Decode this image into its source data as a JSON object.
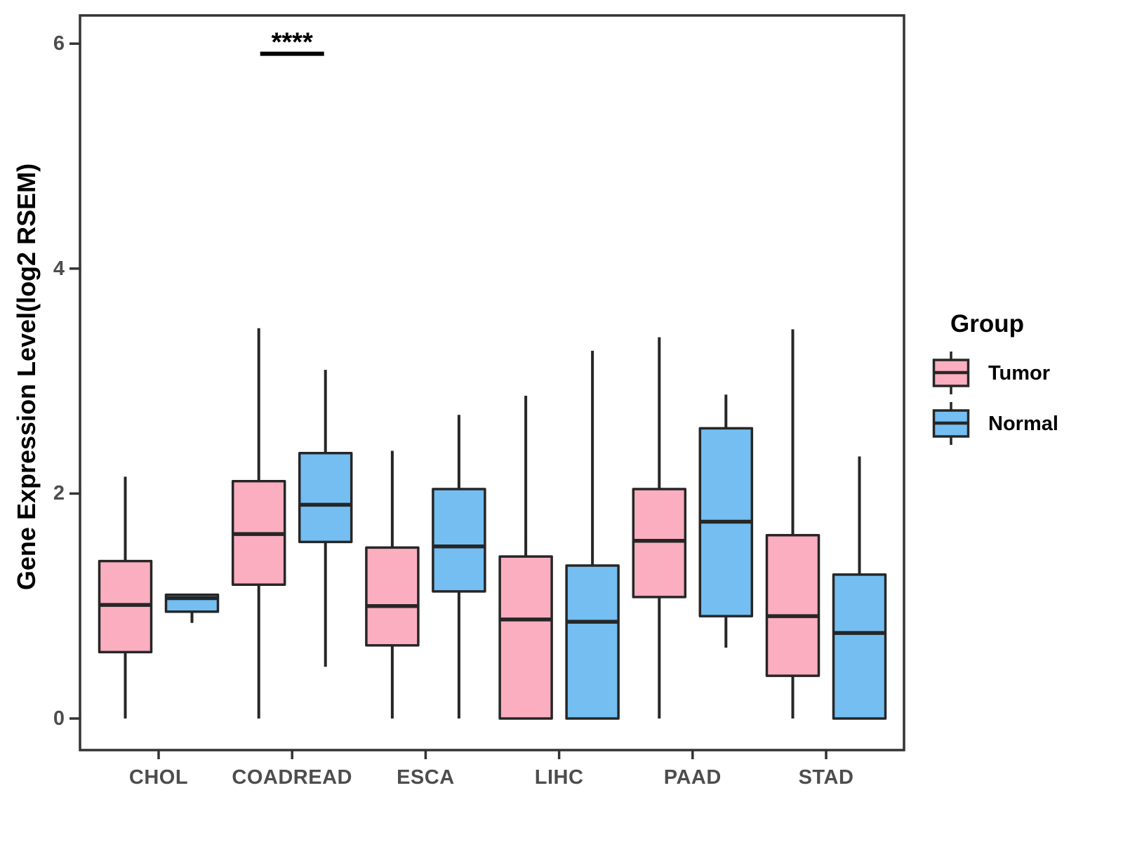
{
  "figure": {
    "background": "#ffffff"
  },
  "chart_data": {
    "type": "boxplot",
    "orientation": "vertical",
    "title": "",
    "xlabel": "",
    "ylabel": "Gene Expression Level(log2 RSEM)",
    "categories": [
      "CHOL",
      "COADREAD",
      "ESCA",
      "LIHC",
      "PAAD",
      "STAD"
    ],
    "y_ticks": [
      0,
      2,
      4,
      6
    ],
    "ylim": [
      -0.29,
      6.26
    ],
    "grid": false,
    "legend": {
      "title": "Group",
      "position": "right",
      "items": [
        {
          "label": "Tumor",
          "color": "#FAAEC0"
        },
        {
          "label": "Normal",
          "color": "#74BEF2"
        }
      ]
    },
    "style": {
      "box_stroke": "#262626",
      "axis_color": "#333333",
      "tick_label_color": "#4d4d4d",
      "text_color": "#000000"
    },
    "series": [
      {
        "name": "Tumor",
        "color": "#FAAEC0",
        "boxes": [
          {
            "category": "CHOL",
            "whisker_low": 0,
            "q1": 0.59,
            "median": 1.01,
            "q3": 1.4,
            "whisker_high": 2.15
          },
          {
            "category": "COADREAD",
            "whisker_low": 0,
            "q1": 1.19,
            "median": 1.64,
            "q3": 2.11,
            "whisker_high": 3.47
          },
          {
            "category": "ESCA",
            "whisker_low": 0,
            "q1": 0.65,
            "median": 1.0,
            "q3": 1.52,
            "whisker_high": 2.38
          },
          {
            "category": "LIHC",
            "whisker_low": 0,
            "q1": 0.0,
            "median": 0.88,
            "q3": 1.44,
            "whisker_high": 2.87
          },
          {
            "category": "PAAD",
            "whisker_low": 0,
            "q1": 1.08,
            "median": 1.58,
            "q3": 2.04,
            "whisker_high": 3.39
          },
          {
            "category": "STAD",
            "whisker_low": 0,
            "q1": 0.38,
            "median": 0.91,
            "q3": 1.63,
            "whisker_high": 3.46
          }
        ]
      },
      {
        "name": "Normal",
        "color": "#74BEF2",
        "boxes": [
          {
            "category": "CHOL",
            "whisker_low": 0.85,
            "q1": 0.95,
            "median": 1.07,
            "q3": 1.1,
            "whisker_high": 1.1
          },
          {
            "category": "COADREAD",
            "whisker_low": 0.46,
            "q1": 1.57,
            "median": 1.9,
            "q3": 2.36,
            "whisker_high": 3.1
          },
          {
            "category": "ESCA",
            "whisker_low": 0,
            "q1": 1.13,
            "median": 1.53,
            "q3": 2.04,
            "whisker_high": 2.7
          },
          {
            "category": "LIHC",
            "whisker_low": 0,
            "q1": 0.0,
            "median": 0.86,
            "q3": 1.36,
            "whisker_high": 3.27
          },
          {
            "category": "PAAD",
            "whisker_low": 0.63,
            "q1": 0.91,
            "median": 1.75,
            "q3": 2.58,
            "whisker_high": 2.88
          },
          {
            "category": "STAD",
            "whisker_low": 0,
            "q1": 0.0,
            "median": 0.76,
            "q3": 1.28,
            "whisker_high": 2.33
          }
        ]
      }
    ],
    "annotations": [
      {
        "type": "significance",
        "text": "****",
        "category": "COADREAD",
        "bar_y": 5.91
      }
    ]
  }
}
